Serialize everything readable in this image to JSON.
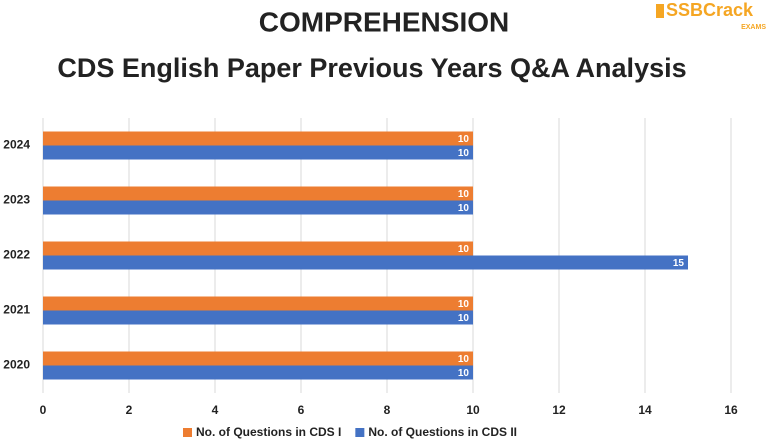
{
  "logo": {
    "name": "SSBCrack",
    "sub": "EXAMS"
  },
  "chart_data": {
    "type": "barh",
    "title": "COMPREHENSION",
    "subtitle": "CDS English Paper Previous Years Q&A Analysis",
    "categories": [
      "2024",
      "2023",
      "2022",
      "2021",
      "2020"
    ],
    "series": [
      {
        "name": "No. of Questions in CDS I",
        "color": "#ed7d31",
        "values": [
          10,
          10,
          10,
          10,
          10
        ]
      },
      {
        "name": "No. of Questions in CDS II",
        "color": "#4472c4",
        "values": [
          10,
          10,
          15,
          10,
          10
        ]
      }
    ],
    "xlim": [
      0,
      16
    ],
    "xticks": [
      0,
      2,
      4,
      6,
      8,
      10,
      12,
      14,
      16
    ],
    "grid": true,
    "legend": "bottom"
  }
}
